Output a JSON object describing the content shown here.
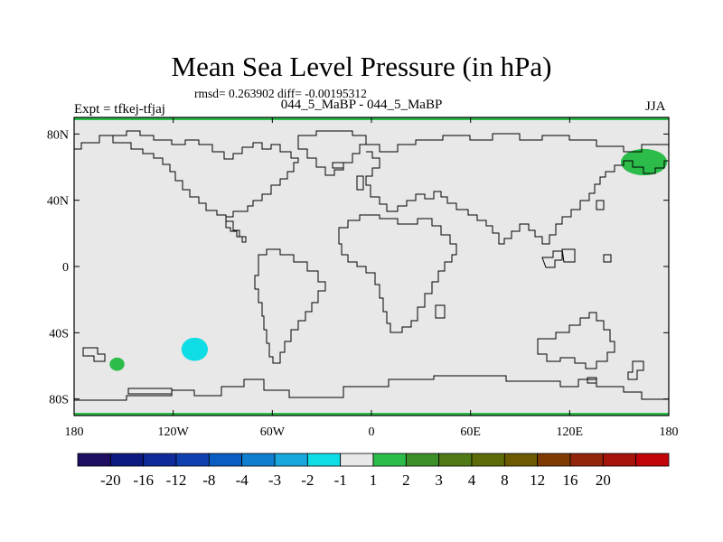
{
  "header": {
    "title": "Mean Sea Level Pressure (in hPa)",
    "stats": "rmsd= 0.263902 diff= -0.00195312",
    "subtitle": "044_5_MaBP - 044_5_MaBP",
    "expt": "Expt = tfkej-tfjaj",
    "season": "JJA"
  },
  "axes": {
    "lon_ticks": [
      {
        "lon": -180,
        "label": "180"
      },
      {
        "lon": -120,
        "label": "120W"
      },
      {
        "lon": -60,
        "label": "60W"
      },
      {
        "lon": 0,
        "label": "0"
      },
      {
        "lon": 60,
        "label": "60E"
      },
      {
        "lon": 120,
        "label": "120E"
      },
      {
        "lon": 180,
        "label": "180"
      }
    ],
    "lat_ticks": [
      {
        "lat": 80,
        "label": "80N"
      },
      {
        "lat": 40,
        "label": "40N"
      },
      {
        "lat": 0,
        "label": "0"
      },
      {
        "lat": -40,
        "label": "40S"
      },
      {
        "lat": -80,
        "label": "80S"
      }
    ],
    "lon_range": [
      -180,
      180
    ],
    "lat_range": [
      -90,
      90
    ]
  },
  "colorbar": {
    "colors": [
      "#1f0e62",
      "#0d1a80",
      "#0f2a99",
      "#1040b0",
      "#0a5ec2",
      "#0f7ecf",
      "#19a6dc",
      "#0fdde6",
      "#e8e8e8",
      "#2bbc4a",
      "#3d8f2a",
      "#4f7a16",
      "#5f6a08",
      "#6b5a02",
      "#7f3a02",
      "#93250a",
      "#a6140b",
      "#c1060a"
    ],
    "labels": [
      "-20",
      "-16",
      "-12",
      "-8",
      "-4",
      "-3",
      "-2",
      "-1",
      "1",
      "2",
      "3",
      "4",
      "8",
      "12",
      "16",
      "20"
    ]
  },
  "anomalies": [
    {
      "name": "positive-anomaly-siberia",
      "color": "#2bbc4a",
      "lon": 165,
      "lat": 63,
      "rlon": 14,
      "rlat": 8
    },
    {
      "name": "negative-anomaly-south-pacific",
      "color": "#0fdde6",
      "lon": -107,
      "lat": -50,
      "rlon": 8,
      "rlat": 7
    },
    {
      "name": "positive-anomaly-southwest-pacific",
      "color": "#2bbc4a",
      "lon": -154,
      "lat": -59,
      "rlon": 4.5,
      "rlat": 4
    }
  ]
}
